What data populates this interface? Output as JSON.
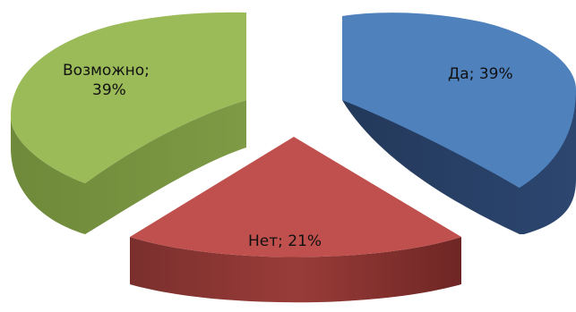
{
  "chart_data": {
    "type": "pie",
    "style": "3d-exploded",
    "slices": [
      {
        "name": "Да",
        "value": 39,
        "label": "Да; 39%",
        "color": "#4f81bd"
      },
      {
        "name": "Нет",
        "value": 21,
        "label": "Нет; 21%",
        "color": "#c0504d"
      },
      {
        "name": "Возможно",
        "value": 39,
        "label_line1": "Возможно;",
        "label_line2": "39%",
        "color": "#9bbb59"
      }
    ]
  }
}
